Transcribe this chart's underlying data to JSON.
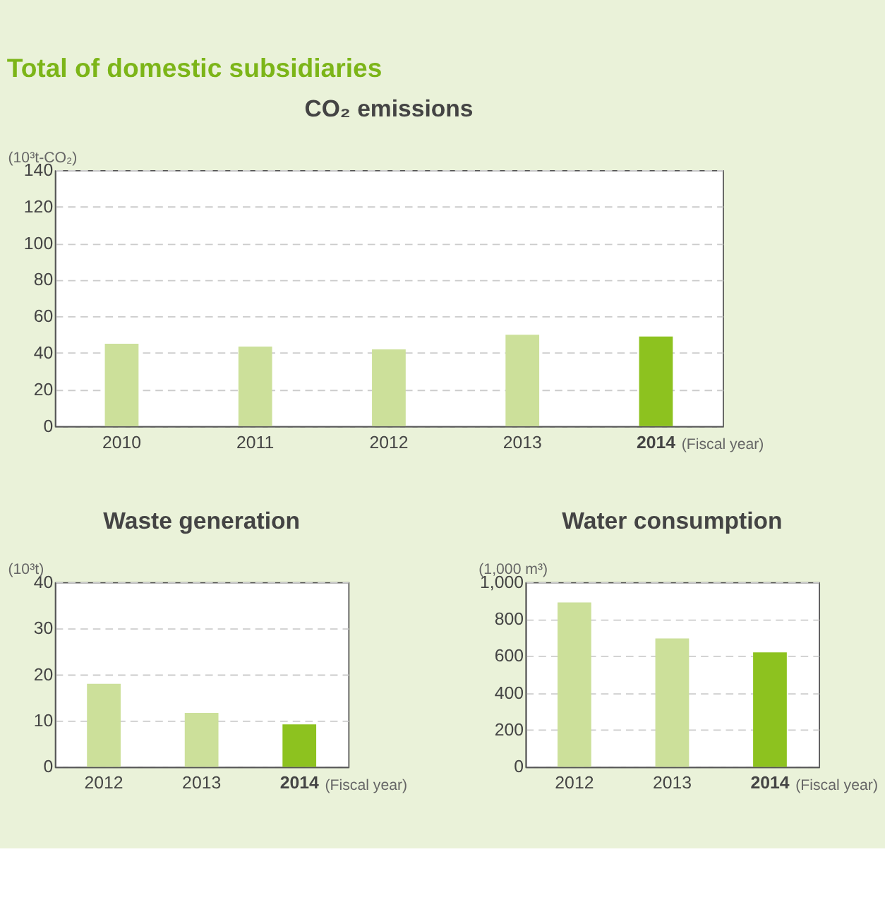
{
  "chart_data": [
    {
      "type": "bar",
      "title": "CO₂ emissions",
      "annotations": [
        "Total of domestic subsidiaries"
      ],
      "ylabel": "(10³t-CO₂)",
      "xlabel": "(Fiscal year)",
      "categories": [
        "2010",
        "2011",
        "2012",
        "2013",
        "2014"
      ],
      "values": [
        45,
        43.5,
        42,
        50,
        49
      ],
      "colors": [
        "#cce09a",
        "#cce09a",
        "#cce09a",
        "#cce09a",
        "#8dc21f"
      ],
      "ylim": [
        0,
        140
      ],
      "yticks": [
        0,
        20,
        40,
        60,
        80,
        100,
        120,
        140
      ],
      "grid": "y"
    },
    {
      "type": "bar",
      "title": "Waste generation",
      "ylabel": "(10³t)",
      "xlabel": "(Fiscal year)",
      "categories": [
        "2012",
        "2013",
        "2014"
      ],
      "values": [
        18,
        11.7,
        9.2
      ],
      "colors": [
        "#cce09a",
        "#cce09a",
        "#8dc21f"
      ],
      "ylim": [
        0,
        40
      ],
      "yticks": [
        0,
        10,
        20,
        30,
        40
      ],
      "grid": "y"
    },
    {
      "type": "bar",
      "title": "Water consumption",
      "ylabel": "(1,000 m³)",
      "xlabel": "(Fiscal year)",
      "categories": [
        "2012",
        "2013",
        "2014"
      ],
      "values": [
        890,
        695,
        620
      ],
      "colors": [
        "#cce09a",
        "#cce09a",
        "#8dc21f"
      ],
      "ylim": [
        0,
        1000
      ],
      "yticks": [
        0,
        200,
        400,
        600,
        800,
        {
          "value": 1000,
          "label": "1,000"
        }
      ],
      "grid": "y"
    }
  ]
}
